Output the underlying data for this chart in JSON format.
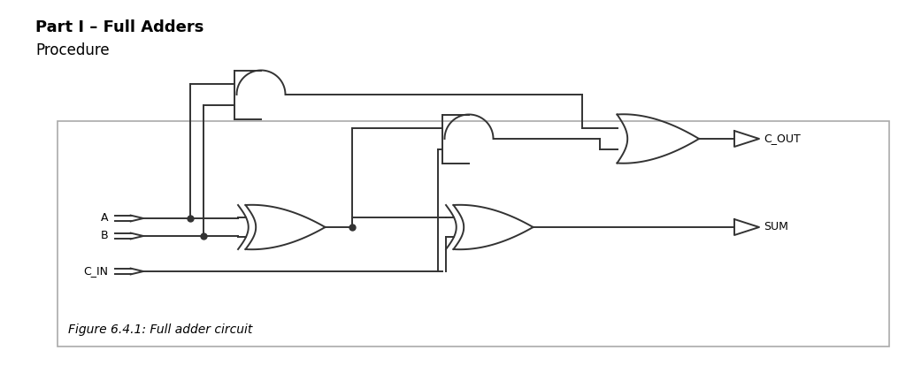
{
  "title": "Part I – Full Adders",
  "subtitle": "Procedure",
  "figure_caption": "Figure 6.4.1: Full adder circuit",
  "bg_color": "#ffffff",
  "box_edge_color": "#aaaaaa",
  "line_color": "#333333",
  "text_color": "#000000",
  "title_fontsize": 13,
  "subtitle_fontsize": 12,
  "caption_fontsize": 10,
  "label_fontsize": 10,
  "io_fontsize": 9
}
